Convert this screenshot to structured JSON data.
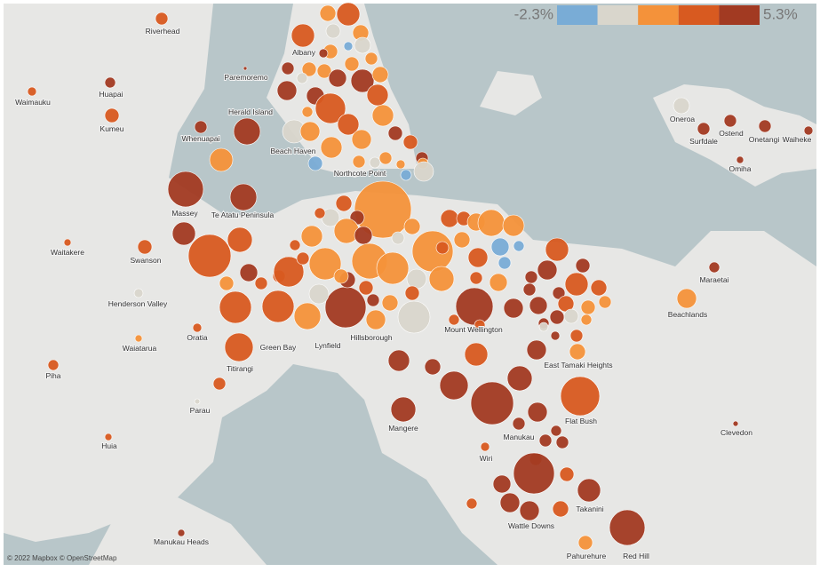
{
  "legend": {
    "min_label": "-2.3%",
    "max_label": "5.3%",
    "colors": [
      "#79acd6",
      "#d9d6cc",
      "#f4923a",
      "#d85a20",
      "#a23a22"
    ]
  },
  "places": [
    "Riverhead",
    "Waimauku",
    "Huapai",
    "Kumeu",
    "Paremoremo",
    "Albany",
    "Herald Island",
    "Whenuapai",
    "Beach Haven",
    "Northcote Point",
    "Massey",
    "Te Atatu Peninsula",
    "Waitakere",
    "Swanson",
    "Henderson Valley",
    "Oratia",
    "Waiatarua",
    "Green Bay",
    "Lynfield",
    "Hillsborough",
    "Mount Wellington",
    "Titirangi",
    "Piha",
    "Parau",
    "Mangere",
    "Manukau",
    "Flat Bush",
    "East Tamaki Heights",
    "Huia",
    "Wiri",
    "Wattle Downs",
    "Takanini",
    "Pahurehure",
    "Red Hill",
    "Manukau Heads",
    "Clevedon",
    "Beachlands",
    "Maraetai",
    "Oneroa",
    "Surfdale",
    "Ostend",
    "Onetangi",
    "Waiheke",
    "Omiha"
  ],
  "attribution": "© 2022 Mapbox © OpenStreetMap"
}
